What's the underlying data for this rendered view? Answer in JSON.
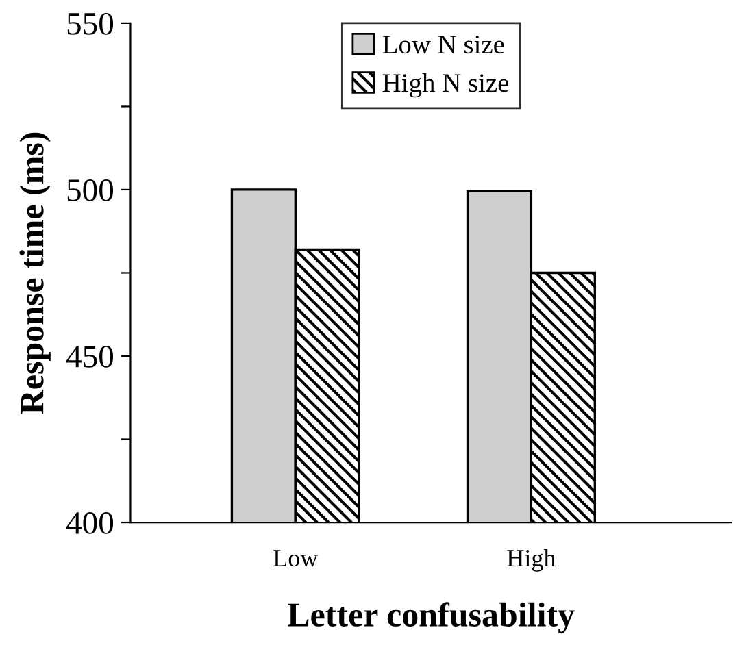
{
  "chart_data": {
    "type": "bar",
    "xlabel": "Letter confusability",
    "ylabel": "Response time (ms)",
    "categories": [
      "Low",
      "High"
    ],
    "series": [
      {
        "name": "Low N size",
        "color": "#cfcfcf",
        "values": [
          500,
          499.5
        ]
      },
      {
        "name": "High N size",
        "color": "#000000",
        "values": [
          482,
          475
        ]
      }
    ],
    "ylim": [
      400,
      550
    ],
    "yticks": [
      400,
      {
        "value": 425,
        "label": null
      },
      450,
      {
        "value": 475,
        "label": null
      },
      500,
      {
        "value": 525,
        "label": null
      },
      550
    ],
    "legend": "top",
    "grid": false
  }
}
